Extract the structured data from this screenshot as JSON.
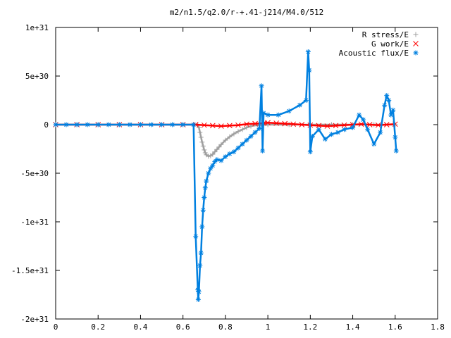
{
  "chart_data": {
    "type": "scatter",
    "title": "m2/n1.5/q2.0/r-+.41-j214/M4.0/512",
    "xlabel": "",
    "ylabel": "",
    "xlim": [
      0,
      1.8
    ],
    "ylim": [
      -2e+31,
      1e+31
    ],
    "x_ticks": [
      {
        "value": 0,
        "label": "0"
      },
      {
        "value": 0.2,
        "label": "0.2"
      },
      {
        "value": 0.4,
        "label": "0.4"
      },
      {
        "value": 0.6,
        "label": "0.6"
      },
      {
        "value": 0.8,
        "label": "0.8"
      },
      {
        "value": 1.0,
        "label": "1"
      },
      {
        "value": 1.2,
        "label": "1.2"
      },
      {
        "value": 1.4,
        "label": "1.4"
      },
      {
        "value": 1.6,
        "label": "1.6"
      },
      {
        "value": 1.8,
        "label": "1.8"
      }
    ],
    "y_ticks": [
      {
        "value": 1e+31,
        "label": "1e+31"
      },
      {
        "value": 5e+30,
        "label": "5e+30"
      },
      {
        "value": 0,
        "label": "0"
      },
      {
        "value": -5e+30,
        "label": "-5e+30"
      },
      {
        "value": -1e+31,
        "label": "-1e+31"
      },
      {
        "value": -1.5e+31,
        "label": "-1.5e+31"
      },
      {
        "value": -2e+31,
        "label": "-2e+31"
      }
    ],
    "legend_position": "top-right",
    "grid": false,
    "series": [
      {
        "name": "R stress/E",
        "marker": "plus",
        "color": "#a0a0a0",
        "points": [
          [
            0,
            0
          ],
          [
            0.1,
            0
          ],
          [
            0.2,
            0
          ],
          [
            0.3,
            0
          ],
          [
            0.4,
            0
          ],
          [
            0.5,
            0
          ],
          [
            0.6,
            0
          ],
          [
            0.65,
            0
          ],
          [
            0.67,
            0
          ],
          [
            0.675,
            -3e+29
          ],
          [
            0.68,
            -8e+29
          ],
          [
            0.685,
            -1.3e+30
          ],
          [
            0.69,
            -1.8e+30
          ],
          [
            0.695,
            -2.2e+30
          ],
          [
            0.7,
            -2.6e+30
          ],
          [
            0.705,
            -2.9e+30
          ],
          [
            0.71,
            -3.1e+30
          ],
          [
            0.72,
            -3.25e+30
          ],
          [
            0.73,
            -3.2e+30
          ],
          [
            0.74,
            -3.05e+30
          ],
          [
            0.75,
            -2.8e+30
          ],
          [
            0.76,
            -2.55e+30
          ],
          [
            0.77,
            -2.3e+30
          ],
          [
            0.78,
            -2.05e+30
          ],
          [
            0.8,
            -1.6e+30
          ],
          [
            0.82,
            -1.25e+30
          ],
          [
            0.84,
            -9.5e+29
          ],
          [
            0.86,
            -7e+29
          ],
          [
            0.88,
            -5e+29
          ],
          [
            0.9,
            -3e+29
          ],
          [
            0.92,
            -1.5e+29
          ],
          [
            0.95,
            -5e+28
          ],
          [
            1.0,
            0
          ],
          [
            1.1,
            0
          ],
          [
            1.2,
            0
          ],
          [
            1.3,
            0
          ],
          [
            1.4,
            0
          ],
          [
            1.5,
            0
          ],
          [
            1.6,
            0
          ]
        ]
      },
      {
        "name": "G work/E",
        "marker": "cross",
        "color": "#ff0000",
        "points": [
          [
            0,
            0
          ],
          [
            0.1,
            0
          ],
          [
            0.2,
            0
          ],
          [
            0.3,
            0
          ],
          [
            0.4,
            0
          ],
          [
            0.5,
            0
          ],
          [
            0.6,
            0
          ],
          [
            0.66,
            0
          ],
          [
            0.7,
            -5e+28
          ],
          [
            0.74,
            -1e+29
          ],
          [
            0.78,
            -1.5e+29
          ],
          [
            0.82,
            -1e+29
          ],
          [
            0.86,
            -5e+28
          ],
          [
            0.9,
            5e+28
          ],
          [
            0.94,
            1e+29
          ],
          [
            0.98,
            1.5e+29
          ],
          [
            1.0,
            2e+29
          ],
          [
            1.04,
            1.5e+29
          ],
          [
            1.08,
            1e+29
          ],
          [
            1.12,
            5e+28
          ],
          [
            1.16,
            0
          ],
          [
            1.2,
            -5e+28
          ],
          [
            1.24,
            -1e+29
          ],
          [
            1.28,
            -1.5e+29
          ],
          [
            1.32,
            -1e+29
          ],
          [
            1.36,
            -5e+28
          ],
          [
            1.4,
            0
          ],
          [
            1.44,
            5e+28
          ],
          [
            1.48,
            0
          ],
          [
            1.52,
            -5e+28
          ],
          [
            1.56,
            0
          ],
          [
            1.6,
            5e+28
          ]
        ]
      },
      {
        "name": "Acoustic flux/E",
        "marker": "star",
        "color": "#0080e0",
        "points": [
          [
            0,
            0
          ],
          [
            0.05,
            0
          ],
          [
            0.1,
            0
          ],
          [
            0.15,
            0
          ],
          [
            0.2,
            0
          ],
          [
            0.25,
            0
          ],
          [
            0.3,
            0
          ],
          [
            0.35,
            0
          ],
          [
            0.4,
            0
          ],
          [
            0.45,
            0
          ],
          [
            0.5,
            0
          ],
          [
            0.55,
            0
          ],
          [
            0.6,
            0
          ],
          [
            0.65,
            0
          ],
          [
            0.66,
            -1.15e+31
          ],
          [
            0.67,
            -1.7e+31
          ],
          [
            0.672,
            -1.8e+31
          ],
          [
            0.675,
            -1.72e+31
          ],
          [
            0.68,
            -1.45e+31
          ],
          [
            0.685,
            -1.32e+31
          ],
          [
            0.69,
            -1.05e+31
          ],
          [
            0.695,
            -8.8e+30
          ],
          [
            0.7,
            -7.5e+30
          ],
          [
            0.705,
            -6.5e+30
          ],
          [
            0.71,
            -5.8e+30
          ],
          [
            0.72,
            -5e+30
          ],
          [
            0.73,
            -4.5e+30
          ],
          [
            0.74,
            -4.2e+30
          ],
          [
            0.75,
            -3.8e+30
          ],
          [
            0.76,
            -3.6e+30
          ],
          [
            0.78,
            -3.7e+30
          ],
          [
            0.8,
            -3.3e+30
          ],
          [
            0.82,
            -3e+30
          ],
          [
            0.84,
            -2.8e+30
          ],
          [
            0.86,
            -2.4e+30
          ],
          [
            0.88,
            -2e+30
          ],
          [
            0.9,
            -1.6e+30
          ],
          [
            0.92,
            -1.2e+30
          ],
          [
            0.94,
            -8e+29
          ],
          [
            0.96,
            -4e+29
          ],
          [
            0.97,
            4e+30
          ],
          [
            0.975,
            -2.7e+30
          ],
          [
            0.98,
            1.2e+30
          ],
          [
            1.0,
            1e+30
          ],
          [
            1.05,
            1e+30
          ],
          [
            1.1,
            1.4e+30
          ],
          [
            1.15,
            2e+30
          ],
          [
            1.18,
            2.5e+30
          ],
          [
            1.19,
            7.5e+30
          ],
          [
            1.195,
            5.6e+30
          ],
          [
            1.2,
            -2.8e+30
          ],
          [
            1.21,
            -1.2e+30
          ],
          [
            1.24,
            -5e+29
          ],
          [
            1.27,
            -1.5e+30
          ],
          [
            1.3,
            -1e+30
          ],
          [
            1.33,
            -8e+29
          ],
          [
            1.36,
            -5e+29
          ],
          [
            1.4,
            -3e+29
          ],
          [
            1.43,
            1e+30
          ],
          [
            1.45,
            5e+29
          ],
          [
            1.47,
            -5e+29
          ],
          [
            1.5,
            -2e+30
          ],
          [
            1.53,
            -8e+29
          ],
          [
            1.55,
            2e+30
          ],
          [
            1.56,
            3e+30
          ],
          [
            1.57,
            2.5e+30
          ],
          [
            1.58,
            1e+30
          ],
          [
            1.59,
            1.5e+30
          ],
          [
            1.6,
            -1.3e+30
          ],
          [
            1.605,
            -2.7e+30
          ]
        ]
      }
    ]
  }
}
